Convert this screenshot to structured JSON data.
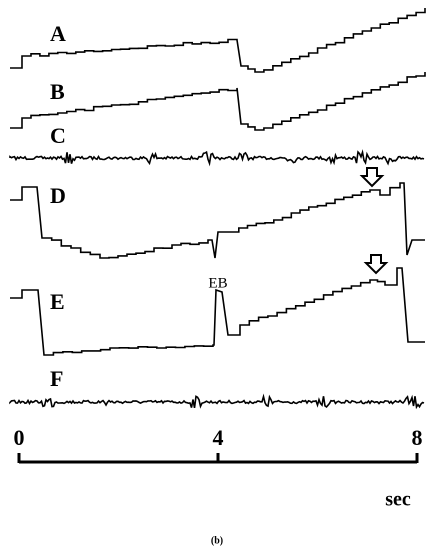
{
  "figure": {
    "traces": [
      {
        "label": "A"
      },
      {
        "label": "B"
      },
      {
        "label": "C"
      },
      {
        "label": "D"
      },
      {
        "label": "E"
      },
      {
        "label": "F"
      }
    ],
    "annotation": "EB",
    "time_axis": {
      "lim": [
        0,
        8
      ],
      "ticks": [
        0,
        4,
        8
      ],
      "unit": "sec"
    },
    "caption": "(b)"
  }
}
